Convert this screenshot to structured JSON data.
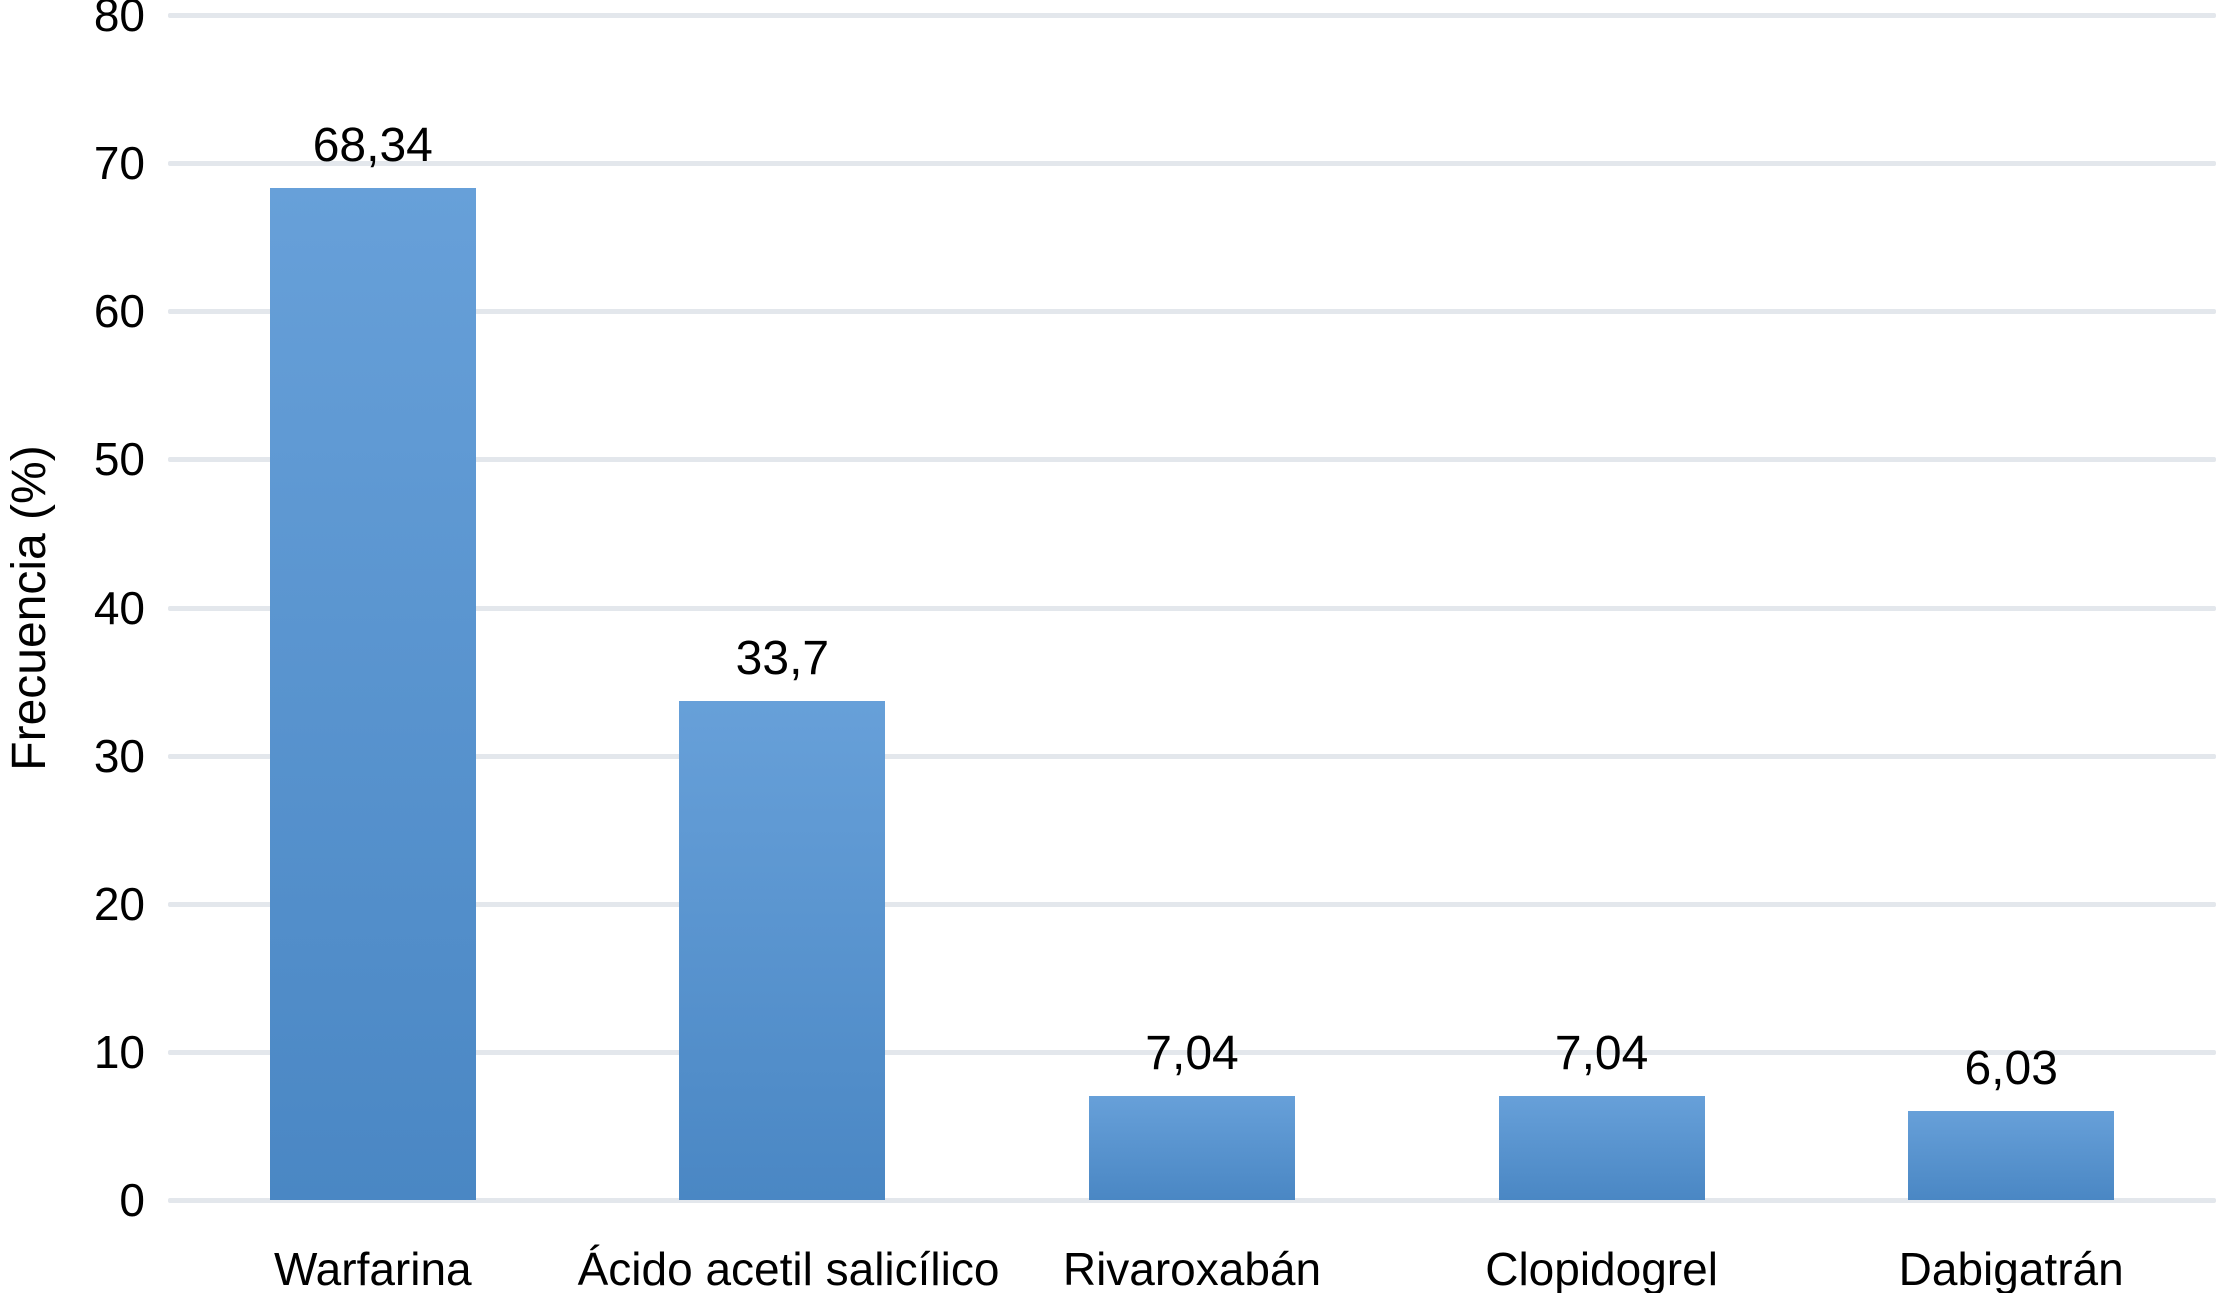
{
  "chart_data": {
    "type": "bar",
    "title": "",
    "xlabel": "",
    "ylabel": "Frecuencia (%)",
    "categories": [
      "Warfarina",
      "Ácido acetil salicílico",
      "Rivaroxabán",
      "Clopidogrel",
      "Dabigatrán"
    ],
    "values": [
      68.34,
      33.7,
      7.04,
      7.04,
      6.03
    ],
    "value_labels": [
      "68,34",
      "33,7",
      "7,04",
      "7,04",
      "6,03"
    ],
    "yticks": [
      0,
      10,
      20,
      30,
      40,
      50,
      60,
      70,
      80
    ],
    "ytick_labels": [
      "0",
      "10",
      "20",
      "30",
      "40",
      "50",
      "60",
      "70",
      "80"
    ],
    "ylim": [
      0,
      80
    ],
    "grid": true,
    "gridline_orientation": "horizontal",
    "legend_position": "none",
    "decimal_separator": ",",
    "colors": {
      "bar_gradient_top": "#67A0D9",
      "bar_gradient_bottom": "#4A87C4",
      "gridline": "#E3E7EC",
      "text": "#000000",
      "background": "#FFFFFF"
    }
  }
}
